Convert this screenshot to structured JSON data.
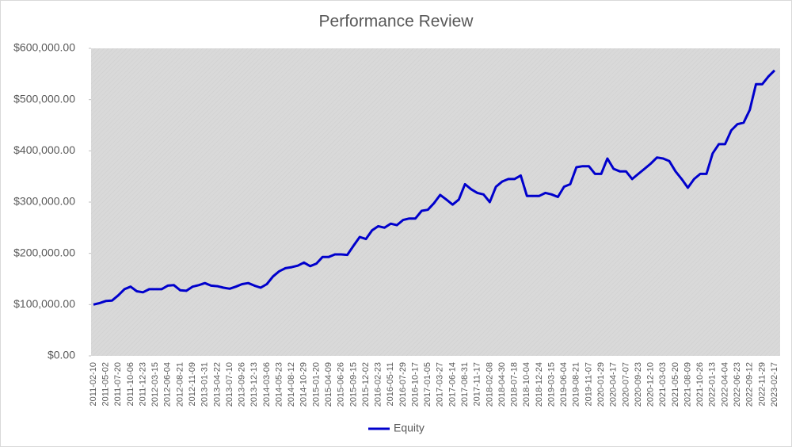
{
  "chart_data": {
    "type": "line",
    "title": "Performance Review",
    "categories": [
      "2011-02-10",
      null,
      "2011-05-02",
      null,
      "2011-07-20",
      null,
      "2011-10-06",
      null,
      "2011-12-23",
      null,
      "2012-03-15",
      null,
      "2012-06-04",
      null,
      "2012-08-21",
      null,
      "2012-11-09",
      null,
      "2013-01-31",
      null,
      "2013-04-22",
      null,
      "2013-07-10",
      null,
      "2013-09-26",
      null,
      "2013-12-13",
      null,
      "2014-03-06",
      null,
      "2014-05-23",
      null,
      "2014-08-12",
      null,
      "2014-10-29",
      null,
      "2015-01-20",
      null,
      "2015-04-09",
      null,
      "2015-06-26",
      null,
      "2015-09-15",
      null,
      "2015-12-02",
      null,
      "2016-02-23",
      null,
      "2016-05-11",
      null,
      "2016-07-29",
      null,
      "2016-10-17",
      null,
      "2017-01-05",
      null,
      "2017-03-27",
      null,
      "2017-06-14",
      null,
      "2017-08-31",
      null,
      "2017-11-17",
      null,
      "2018-02-08",
      null,
      "2018-04-30",
      null,
      "2018-07-18",
      null,
      "2018-10-04",
      null,
      "2018-12-24",
      null,
      "2019-03-15",
      null,
      "2019-06-04",
      null,
      "2019-08-21",
      null,
      "2019-11-07",
      null,
      "2020-01-29",
      null,
      "2020-04-17",
      null,
      "2020-07-07",
      null,
      "2020-09-23",
      null,
      "2020-12-10",
      null,
      "2021-03-03",
      null,
      "2021-05-20",
      null,
      "2021-08-09",
      null,
      "2021-10-26",
      null,
      "2022-01-13",
      null,
      "2022-04-04",
      null,
      "2022-06-23",
      null,
      "2022-09-12",
      null,
      "2022-11-29",
      null,
      "2023-02-17"
    ],
    "series": [
      {
        "name": "Equity",
        "color": "#0000cc",
        "values": [
          100000,
          103000,
          107000,
          108000,
          118000,
          130000,
          135000,
          126000,
          124000,
          130000,
          130000,
          130000,
          137000,
          138000,
          128000,
          127000,
          135000,
          138000,
          142000,
          137000,
          136000,
          133000,
          131000,
          135000,
          140000,
          142000,
          137000,
          133000,
          140000,
          155000,
          165000,
          171000,
          173000,
          176000,
          182000,
          175000,
          180000,
          193000,
          193000,
          198000,
          198000,
          197000,
          215000,
          232000,
          228000,
          245000,
          253000,
          250000,
          258000,
          255000,
          265000,
          268000,
          268000,
          283000,
          285000,
          298000,
          314000,
          305000,
          295000,
          305000,
          335000,
          325000,
          318000,
          315000,
          300000,
          330000,
          340000,
          345000,
          345000,
          352000,
          312000,
          312000,
          312000,
          318000,
          315000,
          310000,
          330000,
          335000,
          368000,
          370000,
          370000,
          355000,
          355000,
          385000,
          365000,
          360000,
          360000,
          345000,
          355000,
          365000,
          375000,
          387000,
          385000,
          380000,
          360000,
          345000,
          328000,
          345000,
          355000,
          355000,
          395000,
          413000,
          413000,
          440000,
          452000,
          455000,
          480000,
          530000,
          530000,
          545000,
          557000
        ]
      }
    ],
    "ylim": [
      0,
      600000
    ],
    "yticks": [
      {
        "value": 0,
        "label": "$0.00"
      },
      {
        "value": 100000,
        "label": "$100,000.00"
      },
      {
        "value": 200000,
        "label": "$200,000.00"
      },
      {
        "value": 300000,
        "label": "$300,000.00"
      },
      {
        "value": 400000,
        "label": "$400,000.00"
      },
      {
        "value": 500000,
        "label": "$500,000.00"
      },
      {
        "value": 600000,
        "label": "$600,000.00"
      }
    ],
    "legend": "bottom"
  }
}
